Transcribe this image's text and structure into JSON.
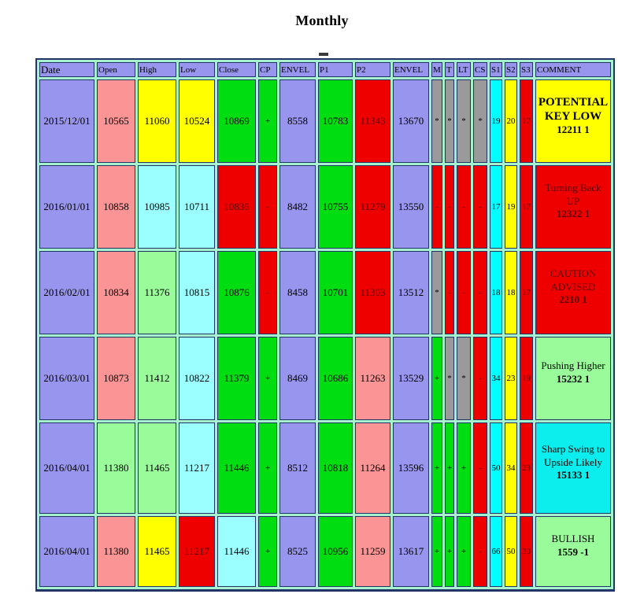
{
  "title": "Monthly",
  "palette": {
    "periwinkle": "#9795ee",
    "salmon": "#fb9595",
    "yellow": "#ffff00",
    "lightcyan": "#9cffff",
    "lightgreen": "#99fb99",
    "green": "#00dd11",
    "red": "#ee0000",
    "gray": "#9a9a9a",
    "cyan": "#00ffff",
    "brightcyan": "#0ceeee",
    "maroon_text": "#5c0000",
    "border": "#223366",
    "spacing": "#a6f2cf"
  },
  "table": {
    "columns": [
      {
        "key": "date",
        "label": "Date"
      },
      {
        "key": "open",
        "label": "Open"
      },
      {
        "key": "high",
        "label": "High"
      },
      {
        "key": "low",
        "label": "Low"
      },
      {
        "key": "close",
        "label": "Close"
      },
      {
        "key": "cp",
        "label": "CP"
      },
      {
        "key": "envel1",
        "label": "ENVEL"
      },
      {
        "key": "p1",
        "label": "P1"
      },
      {
        "key": "p2",
        "label": "P2"
      },
      {
        "key": "envel2",
        "label": "ENVEL"
      },
      {
        "key": "m",
        "label": "M"
      },
      {
        "key": "t",
        "label": "T"
      },
      {
        "key": "lt",
        "label": "LT"
      },
      {
        "key": "cs",
        "label": "CS"
      },
      {
        "key": "s1",
        "label": "S1"
      },
      {
        "key": "s2",
        "label": "S2"
      },
      {
        "key": "s3",
        "label": "S3"
      },
      {
        "key": "comment",
        "label": "COMMENT"
      }
    ],
    "rows": [
      {
        "date": {
          "v": "2015/12/01",
          "bg": "periwinkle"
        },
        "open": {
          "v": "10565",
          "bg": "salmon"
        },
        "high": {
          "v": "11060",
          "bg": "yellow"
        },
        "low": {
          "v": "10524",
          "bg": "yellow"
        },
        "close": {
          "v": "10869",
          "bg": "green"
        },
        "cp": {
          "v": "+",
          "bg": "green"
        },
        "envel1": {
          "v": "8558",
          "bg": "periwinkle"
        },
        "p1": {
          "v": "10783",
          "bg": "green"
        },
        "p2": {
          "v": "11343",
          "bg": "red"
        },
        "envel2": {
          "v": "13670",
          "bg": "periwinkle"
        },
        "m": {
          "v": "*",
          "bg": "gray"
        },
        "t": {
          "v": "*",
          "bg": "gray"
        },
        "lt": {
          "v": "*",
          "bg": "gray"
        },
        "cs": {
          "v": "*",
          "bg": "gray"
        },
        "s1": {
          "v": "19",
          "bg": "cyan"
        },
        "s2": {
          "v": "20",
          "bg": "yellow"
        },
        "s3": {
          "v": "17",
          "bg": "red"
        },
        "comment": {
          "title": "POTENTIAL KEY LOW",
          "value": "12211 1",
          "bg": "yellow",
          "bold": true
        }
      },
      {
        "date": {
          "v": "2016/01/01",
          "bg": "periwinkle"
        },
        "open": {
          "v": "10858",
          "bg": "salmon"
        },
        "high": {
          "v": "10985",
          "bg": "lightcyan"
        },
        "low": {
          "v": "10711",
          "bg": "lightcyan"
        },
        "close": {
          "v": "10836",
          "bg": "red"
        },
        "cp": {
          "v": "-",
          "bg": "red"
        },
        "envel1": {
          "v": "8482",
          "bg": "periwinkle"
        },
        "p1": {
          "v": "10755",
          "bg": "green"
        },
        "p2": {
          "v": "11279",
          "bg": "red"
        },
        "envel2": {
          "v": "13550",
          "bg": "periwinkle"
        },
        "m": {
          "v": "-",
          "bg": "red"
        },
        "t": {
          "v": "-",
          "bg": "red"
        },
        "lt": {
          "v": "-",
          "bg": "red"
        },
        "cs": {
          "v": "-",
          "bg": "red"
        },
        "s1": {
          "v": "17",
          "bg": "cyan"
        },
        "s2": {
          "v": "19",
          "bg": "yellow"
        },
        "s3": {
          "v": "17",
          "bg": "red"
        },
        "comment": {
          "title": "Turning Back UP",
          "value": "12322 1",
          "bg": "red",
          "bold": false
        }
      },
      {
        "date": {
          "v": "2016/02/01",
          "bg": "periwinkle"
        },
        "open": {
          "v": "10834",
          "bg": "salmon"
        },
        "high": {
          "v": "11376",
          "bg": "lightgreen"
        },
        "low": {
          "v": "10815",
          "bg": "lightcyan"
        },
        "close": {
          "v": "10876",
          "bg": "green"
        },
        "cp": {
          "v": "-",
          "bg": "red"
        },
        "envel1": {
          "v": "8458",
          "bg": "periwinkle"
        },
        "p1": {
          "v": "10701",
          "bg": "green"
        },
        "p2": {
          "v": "11303",
          "bg": "red"
        },
        "envel2": {
          "v": "13512",
          "bg": "periwinkle"
        },
        "m": {
          "v": "*",
          "bg": "gray"
        },
        "t": {
          "v": "-",
          "bg": "red"
        },
        "lt": {
          "v": "-",
          "bg": "red"
        },
        "cs": {
          "v": "-",
          "bg": "red"
        },
        "s1": {
          "v": "18",
          "bg": "cyan"
        },
        "s2": {
          "v": "18",
          "bg": "yellow"
        },
        "s3": {
          "v": "17",
          "bg": "red"
        },
        "comment": {
          "title": "CAUTION ADVISED",
          "value": "2210 1",
          "bg": "red",
          "bold": false
        }
      },
      {
        "date": {
          "v": "2016/03/01",
          "bg": "periwinkle"
        },
        "open": {
          "v": "10873",
          "bg": "salmon"
        },
        "high": {
          "v": "11412",
          "bg": "lightgreen"
        },
        "low": {
          "v": "10822",
          "bg": "lightcyan"
        },
        "close": {
          "v": "11379",
          "bg": "green"
        },
        "cp": {
          "v": "+",
          "bg": "green"
        },
        "envel1": {
          "v": "8469",
          "bg": "periwinkle"
        },
        "p1": {
          "v": "10686",
          "bg": "green"
        },
        "p2": {
          "v": "11263",
          "bg": "salmon"
        },
        "envel2": {
          "v": "13529",
          "bg": "periwinkle"
        },
        "m": {
          "v": "+",
          "bg": "green"
        },
        "t": {
          "v": "*",
          "bg": "gray"
        },
        "lt": {
          "v": "*",
          "bg": "gray"
        },
        "cs": {
          "v": "-",
          "bg": "red"
        },
        "s1": {
          "v": "34",
          "bg": "cyan"
        },
        "s2": {
          "v": "23",
          "bg": "yellow"
        },
        "s3": {
          "v": "19",
          "bg": "red"
        },
        "comment": {
          "title": "Pushing Higher",
          "value": "15232 1",
          "bg": "lightgreen",
          "bold": false
        }
      },
      {
        "date": {
          "v": "2016/04/01",
          "bg": "periwinkle"
        },
        "open": {
          "v": "11380",
          "bg": "lightgreen"
        },
        "high": {
          "v": "11465",
          "bg": "lightgreen"
        },
        "low": {
          "v": "11217",
          "bg": "lightcyan"
        },
        "close": {
          "v": "11446",
          "bg": "green"
        },
        "cp": {
          "v": "+",
          "bg": "green"
        },
        "envel1": {
          "v": "8512",
          "bg": "periwinkle"
        },
        "p1": {
          "v": "10818",
          "bg": "green"
        },
        "p2": {
          "v": "11264",
          "bg": "salmon"
        },
        "envel2": {
          "v": "13596",
          "bg": "periwinkle"
        },
        "m": {
          "v": "+",
          "bg": "green"
        },
        "t": {
          "v": "+",
          "bg": "green"
        },
        "lt": {
          "v": "+",
          "bg": "green"
        },
        "cs": {
          "v": "-",
          "bg": "red"
        },
        "s1": {
          "v": "50",
          "bg": "cyan"
        },
        "s2": {
          "v": "34",
          "bg": "yellow"
        },
        "s3": {
          "v": "23",
          "bg": "red"
        },
        "comment": {
          "title": "Sharp Swing to Upside Likely",
          "value": "15133 1",
          "bg": "brightcyan",
          "bold": false
        }
      },
      {
        "date": {
          "v": "2016/04/01",
          "bg": "periwinkle"
        },
        "open": {
          "v": "11380",
          "bg": "salmon"
        },
        "high": {
          "v": "11465",
          "bg": "yellow"
        },
        "low": {
          "v": "11217",
          "bg": "red"
        },
        "close": {
          "v": "11446",
          "bg": "lightcyan"
        },
        "cp": {
          "v": "+",
          "bg": "green"
        },
        "envel1": {
          "v": "8525",
          "bg": "periwinkle"
        },
        "p1": {
          "v": "10956",
          "bg": "green"
        },
        "p2": {
          "v": "11259",
          "bg": "salmon"
        },
        "envel2": {
          "v": "13617",
          "bg": "periwinkle"
        },
        "m": {
          "v": "+",
          "bg": "green"
        },
        "t": {
          "v": "+",
          "bg": "green"
        },
        "lt": {
          "v": "+",
          "bg": "green"
        },
        "cs": {
          "v": "-",
          "bg": "red"
        },
        "s1": {
          "v": "66",
          "bg": "cyan"
        },
        "s2": {
          "v": "50",
          "bg": "yellow"
        },
        "s3": {
          "v": "30",
          "bg": "red"
        },
        "comment": {
          "title": "BULLISH",
          "value": "1559 -1",
          "bg": "lightgreen",
          "bold": false
        }
      }
    ]
  }
}
